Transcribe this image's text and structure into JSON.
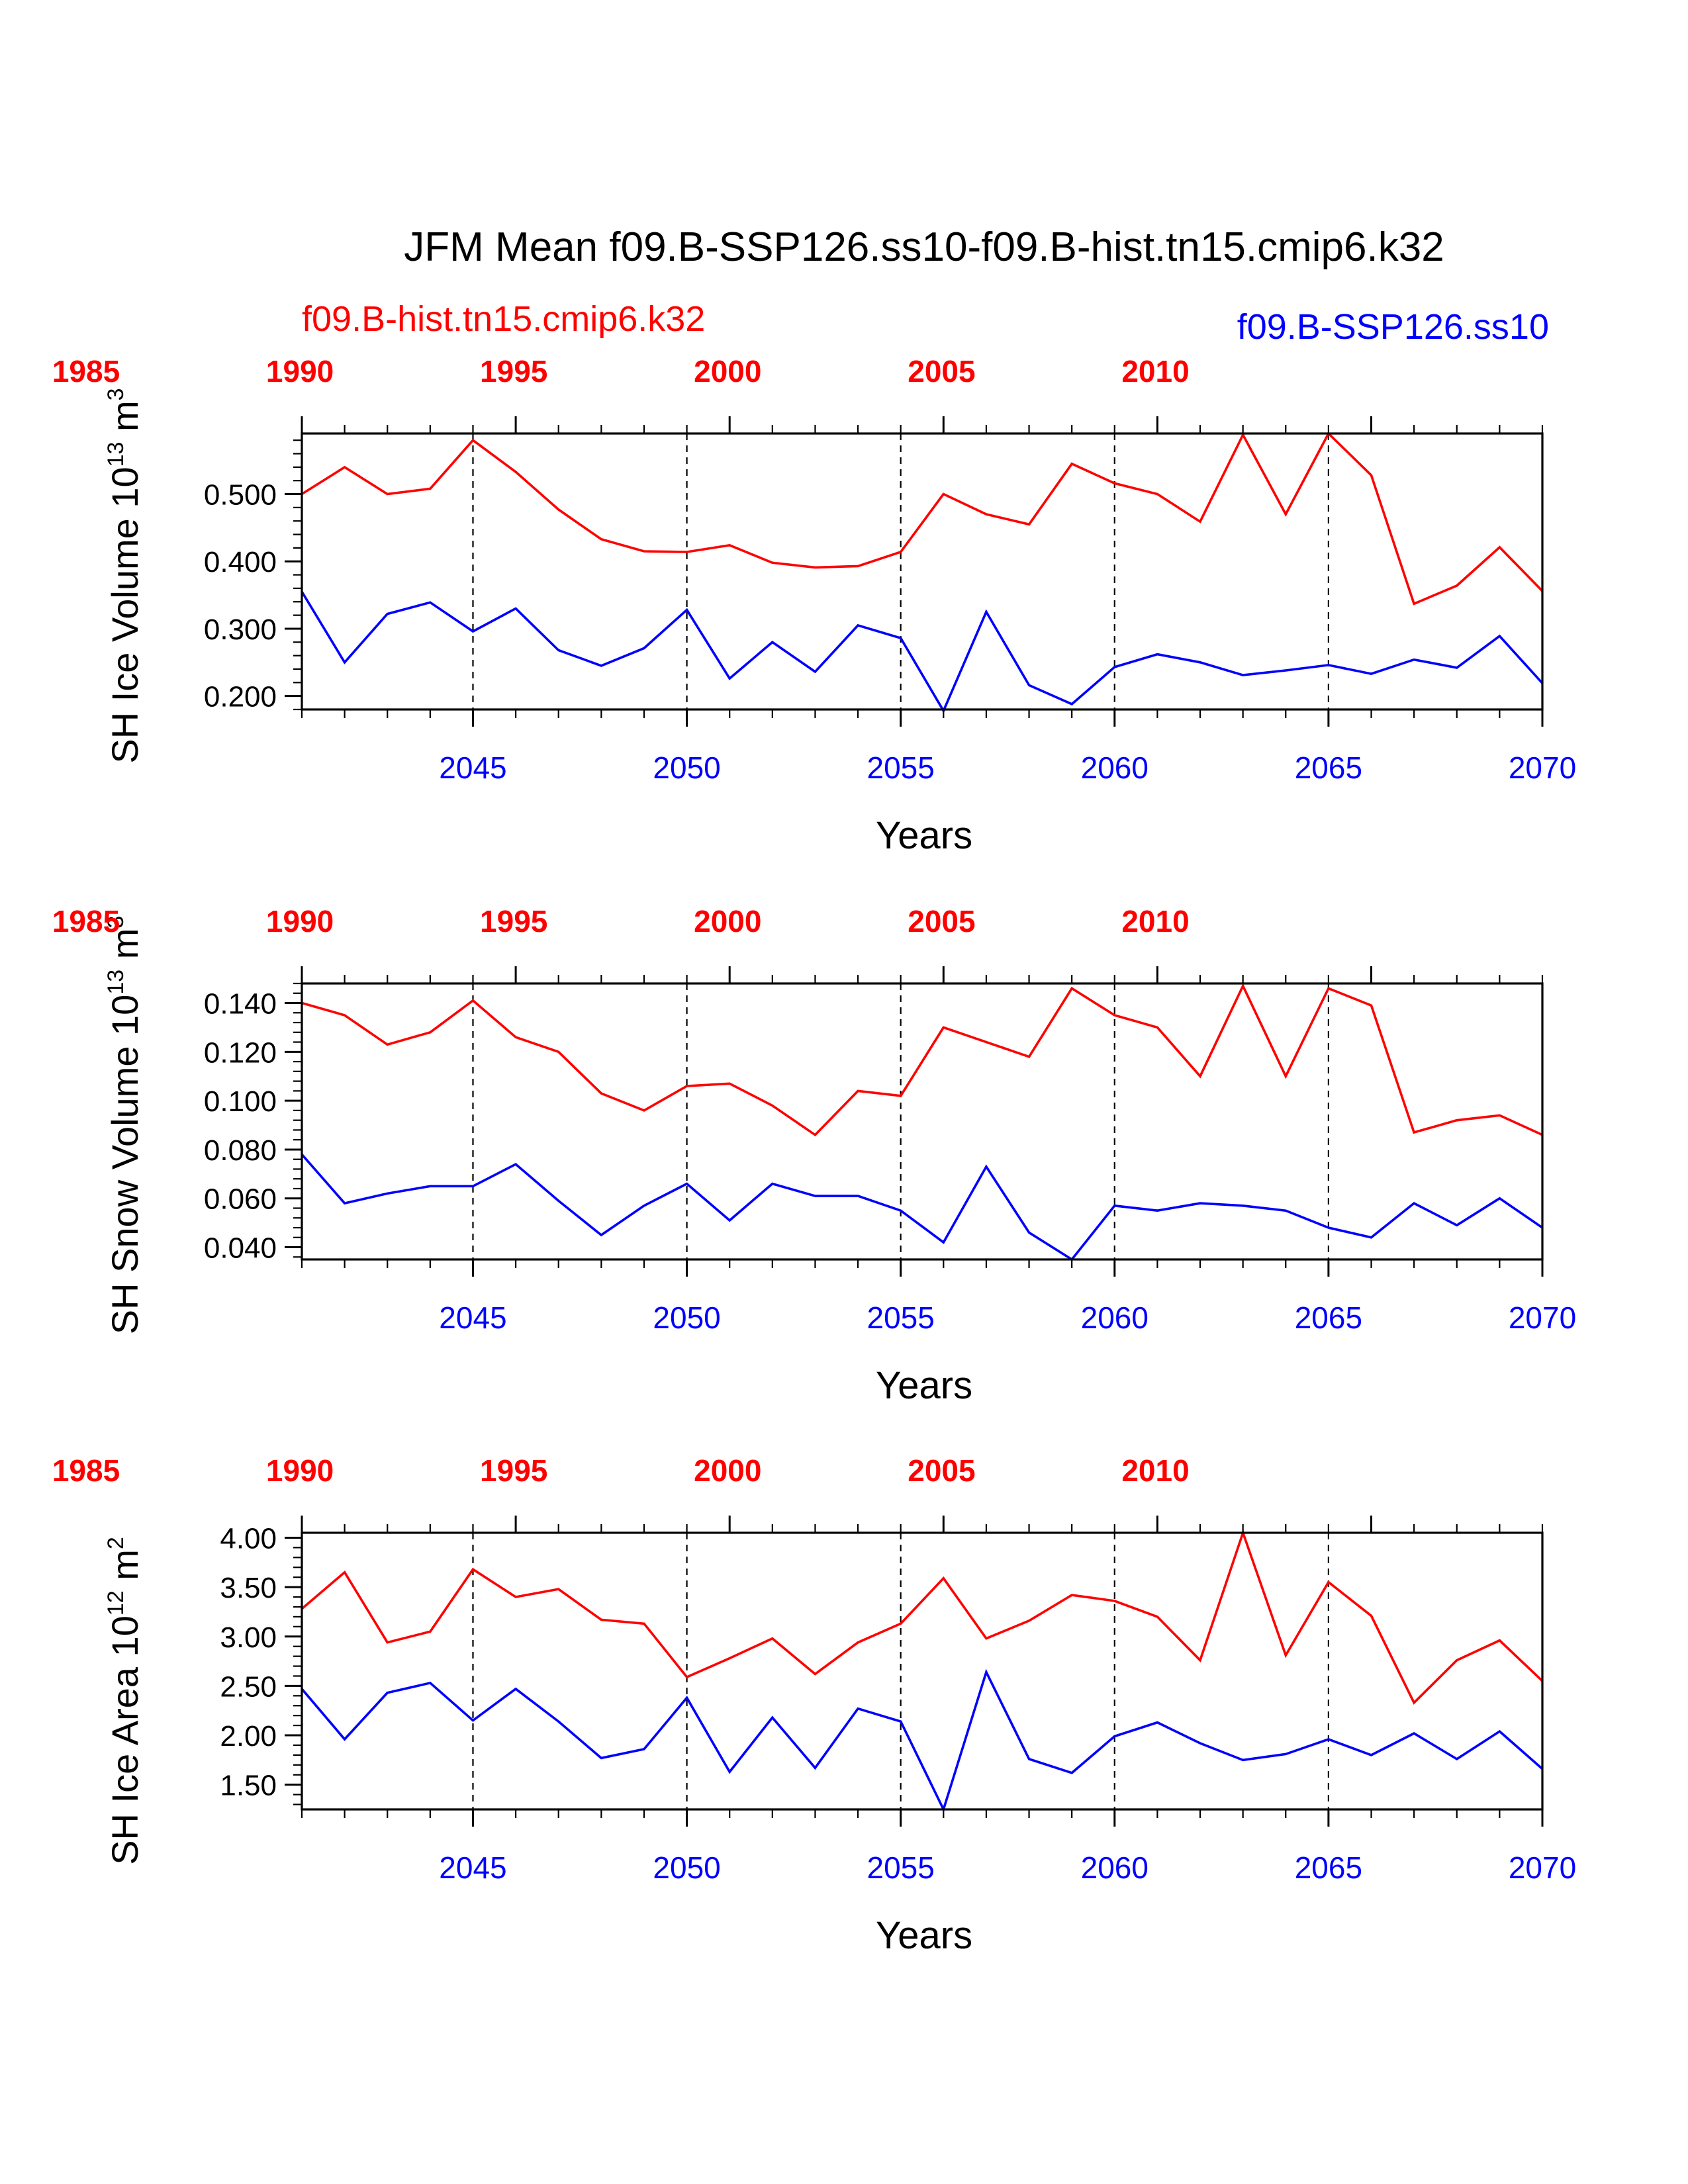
{
  "title": "JFM Mean f09.B-SSP126.ss10-f09.B-hist.tn15.cmip6.k32",
  "subtitle_left": "f09.B-hist.tn15.cmip6.k32",
  "subtitle_right": "f09.B-SSP126.ss10",
  "colors": {
    "hist": "#ff0000",
    "ssp": "#0000ff",
    "axis": "#000000"
  },
  "chart_data": [
    {
      "type": "line",
      "ylabel": "SH Ice Volume 10",
      "ylabel_exp": "13",
      "ylabel_unit": " m",
      "ylabel_unit_exp": "3",
      "xlabel": "Years",
      "xlim": [
        2041,
        2070
      ],
      "ylim": [
        0.18,
        0.59
      ],
      "yticks": [
        0.2,
        0.3,
        0.4,
        0.5
      ],
      "ytick_labels": [
        "0.200",
        "0.300",
        "0.400",
        "0.500"
      ],
      "bottom_ticks": [
        2045,
        2050,
        2055,
        2060,
        2065,
        2070
      ],
      "bottom_tick_labels": [
        "2045",
        "2050",
        "2055",
        "2060",
        "2065",
        "2070"
      ],
      "top_ticks": [
        1985,
        1990,
        1995,
        2000,
        2005,
        2010
      ],
      "top_tick_labels": [
        "1985",
        "1990",
        "1995",
        "2000",
        "2005",
        "2010"
      ],
      "top_offset": 56,
      "grid": "vertical dashed at 2045, 2050, 2055, 2060, 2065",
      "x": [
        2041,
        2042,
        2043,
        2044,
        2045,
        2046,
        2047,
        2048,
        2049,
        2050,
        2051,
        2052,
        2053,
        2054,
        2055,
        2056,
        2057,
        2058,
        2059,
        2060,
        2061,
        2062,
        2063,
        2064,
        2065,
        2066,
        2067,
        2068,
        2069,
        2070
      ],
      "series": [
        {
          "name": "f09.B-hist.tn15.cmip6.k32",
          "axis": "top",
          "color": "#ff0000",
          "values": [
            0.5,
            0.54,
            0.5,
            0.508,
            0.58,
            0.533,
            0.477,
            0.433,
            0.415,
            0.414,
            0.424,
            0.398,
            0.391,
            0.393,
            0.414,
            0.5,
            0.47,
            0.455,
            0.545,
            0.516,
            0.5,
            0.459,
            0.588,
            0.47,
            0.59,
            0.528,
            0.337,
            0.364,
            0.421,
            0.356
          ]
        },
        {
          "name": "f09.B-SSP126.ss10",
          "axis": "bottom",
          "color": "#0000ff",
          "values": [
            0.355,
            0.25,
            0.322,
            0.339,
            0.296,
            0.33,
            0.268,
            0.245,
            0.271,
            0.328,
            0.226,
            0.28,
            0.236,
            0.305,
            0.286,
            0.178,
            0.325,
            0.216,
            0.188,
            0.243,
            0.262,
            0.25,
            0.231,
            0.238,
            0.246,
            0.233,
            0.254,
            0.242,
            0.289,
            0.219
          ]
        }
      ]
    },
    {
      "type": "line",
      "ylabel": "SH Snow Volume 10",
      "ylabel_exp": "13",
      "ylabel_unit": " m",
      "ylabel_unit_exp": "3",
      "xlabel": "Years",
      "xlim": [
        2041,
        2070
      ],
      "ylim": [
        0.035,
        0.148
      ],
      "yticks": [
        0.04,
        0.06,
        0.08,
        0.1,
        0.12,
        0.14
      ],
      "ytick_labels": [
        "0.040",
        "0.060",
        "0.080",
        "0.100",
        "0.120",
        "0.140"
      ],
      "bottom_ticks": [
        2045,
        2050,
        2055,
        2060,
        2065,
        2070
      ],
      "bottom_tick_labels": [
        "2045",
        "2050",
        "2055",
        "2060",
        "2065",
        "2070"
      ],
      "top_ticks": [
        1985,
        1990,
        1995,
        2000,
        2005,
        2010
      ],
      "top_tick_labels": [
        "1985",
        "1990",
        "1995",
        "2000",
        "2005",
        "2010"
      ],
      "top_offset": 56,
      "grid": "vertical dashed at 2045, 2050, 2055, 2060, 2065",
      "x": [
        2041,
        2042,
        2043,
        2044,
        2045,
        2046,
        2047,
        2048,
        2049,
        2050,
        2051,
        2052,
        2053,
        2054,
        2055,
        2056,
        2057,
        2058,
        2059,
        2060,
        2061,
        2062,
        2063,
        2064,
        2065,
        2066,
        2067,
        2068,
        2069,
        2070
      ],
      "series": [
        {
          "name": "f09.B-hist.tn15.cmip6.k32",
          "axis": "top",
          "color": "#ff0000",
          "values": [
            0.14,
            0.135,
            0.123,
            0.128,
            0.141,
            0.126,
            0.12,
            0.103,
            0.096,
            0.106,
            0.107,
            0.098,
            0.086,
            0.104,
            0.102,
            0.13,
            0.124,
            0.118,
            0.146,
            0.135,
            0.13,
            0.11,
            0.147,
            0.11,
            0.146,
            0.139,
            0.087,
            0.092,
            0.094,
            0.086
          ]
        },
        {
          "name": "f09.B-SSP126.ss10",
          "axis": "bottom",
          "color": "#0000ff",
          "values": [
            0.078,
            0.058,
            0.062,
            0.065,
            0.065,
            0.074,
            0.059,
            0.045,
            0.057,
            0.066,
            0.051,
            0.066,
            0.061,
            0.061,
            0.055,
            0.042,
            0.073,
            0.046,
            0.035,
            0.057,
            0.055,
            0.058,
            0.057,
            0.055,
            0.048,
            0.044,
            0.058,
            0.049,
            0.06,
            0.048
          ]
        }
      ]
    },
    {
      "type": "line",
      "ylabel": "SH Ice Area 10",
      "ylabel_exp": "12",
      "ylabel_unit": " m",
      "ylabel_unit_exp": "2",
      "xlabel": "Years",
      "xlim": [
        2041,
        2070
      ],
      "ylim": [
        1.25,
        4.05
      ],
      "yticks": [
        1.5,
        2.0,
        2.5,
        3.0,
        3.5,
        4.0
      ],
      "ytick_labels": [
        "1.50",
        "2.00",
        "2.50",
        "3.00",
        "3.50",
        "4.00"
      ],
      "bottom_ticks": [
        2045,
        2050,
        2055,
        2060,
        2065,
        2070
      ],
      "bottom_tick_labels": [
        "2045",
        "2050",
        "2055",
        "2060",
        "2065",
        "2070"
      ],
      "top_ticks": [
        1985,
        1990,
        1995,
        2000,
        2005,
        2010
      ],
      "top_tick_labels": [
        "1985",
        "1990",
        "1995",
        "2000",
        "2005",
        "2010"
      ],
      "top_offset": 56,
      "grid": "vertical dashed at 2045, 2050, 2055, 2060, 2065",
      "x": [
        2041,
        2042,
        2043,
        2044,
        2045,
        2046,
        2047,
        2048,
        2049,
        2050,
        2051,
        2052,
        2053,
        2054,
        2055,
        2056,
        2057,
        2058,
        2059,
        2060,
        2061,
        2062,
        2063,
        2064,
        2065,
        2066,
        2067,
        2068,
        2069,
        2070
      ],
      "series": [
        {
          "name": "f09.B-hist.tn15.cmip6.k32",
          "axis": "top",
          "color": "#ff0000",
          "values": [
            3.28,
            3.65,
            2.94,
            3.05,
            3.68,
            3.4,
            3.48,
            3.17,
            3.13,
            2.59,
            2.78,
            2.98,
            2.62,
            2.94,
            3.13,
            3.59,
            2.98,
            3.16,
            3.42,
            3.36,
            3.2,
            2.76,
            4.05,
            2.81,
            3.55,
            3.21,
            2.33,
            2.76,
            2.96,
            2.55
          ]
        },
        {
          "name": "f09.B-SSP126.ss10",
          "axis": "bottom",
          "color": "#0000ff",
          "values": [
            2.47,
            1.96,
            2.43,
            2.53,
            2.15,
            2.47,
            2.14,
            1.77,
            1.86,
            2.38,
            1.63,
            2.18,
            1.67,
            2.27,
            2.14,
            1.25,
            2.64,
            1.76,
            1.62,
            1.99,
            2.13,
            1.92,
            1.75,
            1.81,
            1.96,
            1.8,
            2.02,
            1.76,
            2.04,
            1.66
          ]
        }
      ]
    }
  ]
}
